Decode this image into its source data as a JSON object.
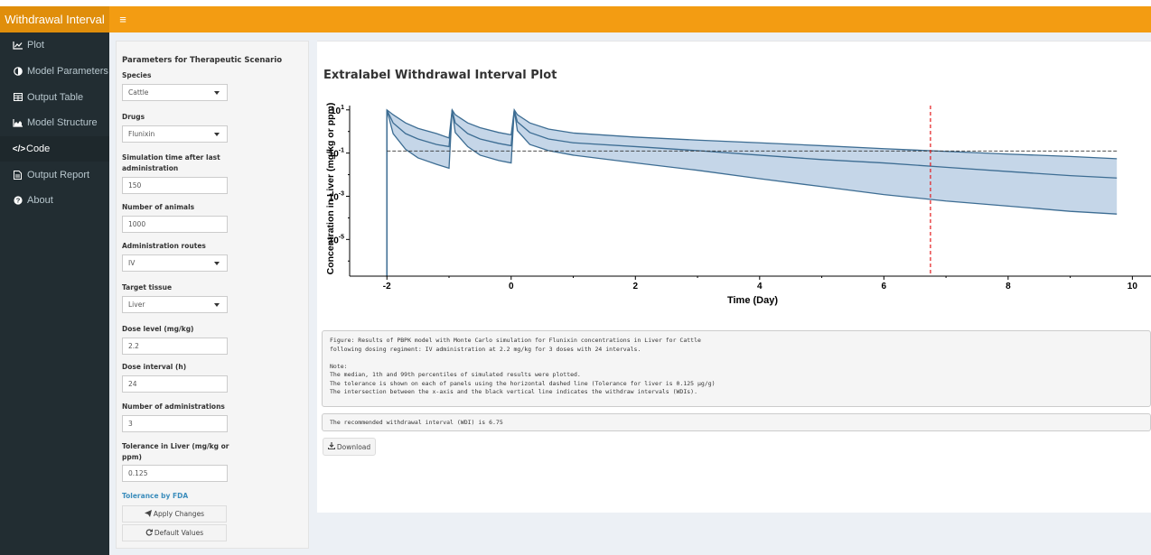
{
  "app": {
    "title": "Withdrawal Interval",
    "toggle_icon": "hamburger-icon"
  },
  "sidebar": {
    "items": [
      {
        "label": "Plot",
        "icon": "line-chart-icon",
        "active": true
      },
      {
        "label": "Model Parameters",
        "icon": "half-circle-icon",
        "active": false
      },
      {
        "label": "Output Table",
        "icon": "table-icon",
        "active": false
      },
      {
        "label": "Model Structure",
        "icon": "area-chart-icon",
        "active": false
      },
      {
        "label": "Code",
        "icon": "code-icon",
        "active": true
      },
      {
        "label": "Output Report",
        "icon": "file-icon",
        "active": false
      },
      {
        "label": "About",
        "icon": "question-icon",
        "active": false
      }
    ]
  },
  "params": {
    "title": "Parameters for Therapeutic Scenario",
    "species": {
      "label": "Species",
      "value": "Cattle"
    },
    "drugs": {
      "label": "Drugs",
      "value": "Flunixin"
    },
    "sim_time": {
      "label": "Simulation time after last administration",
      "value": "150"
    },
    "animals": {
      "label": "Number of animals",
      "value": "1000"
    },
    "routes": {
      "label": "Administration routes",
      "value": "IV"
    },
    "tissue": {
      "label": "Target tissue",
      "value": "Liver"
    },
    "dose_level": {
      "label": "Dose level (mg/kg)",
      "value": "2.2"
    },
    "dose_interval": {
      "label": "Dose interval (h)",
      "value": "24"
    },
    "num_admin": {
      "label": "Number of administrations",
      "value": "3"
    },
    "tolerance": {
      "label": "Tolerance in Liver (mg/kg or ppm)",
      "value": "0.125"
    },
    "tolerance_link": "Tolerance by FDA",
    "apply_label": "Apply Changes",
    "default_label": "Default Values"
  },
  "main": {
    "title": "Extralabel Withdrawal Interval Plot",
    "caption": "Figure: Results of PBPK model with Monte Carlo simulation for Flunixin concentrations in Liver for Cattle\nfollowing dosing regiment: IV administration at 2.2 mg/kg for 3 doses with 24 intervals.\n\nNote:\nThe median, 1th and 99th percentiles of simulated results were plotted.\nThe tolerance is shown on each of panels using the horizontal dashed line (Tolerance for liver is 0.125 µg/g)\nThe intersection between the x-axis and the black vertical line indicates the withdraw intervals (WDIs).",
    "wdi_text": "The recommended withdrawal interval (WDI) is 6.75",
    "download_label": "Download"
  },
  "chart_data": {
    "type": "area",
    "xlabel": "Time (Day)",
    "ylabel": "Concentration in Liver (mg/kg or ppm)",
    "x_ticks": [
      "-2",
      "0",
      "2",
      "4",
      "6",
      "8",
      "10"
    ],
    "y_ticks": [
      "10^1",
      "10^-1",
      "10^-3",
      "10^-5"
    ],
    "xlim": [
      -2.6,
      10.3
    ],
    "ylim_log10": [
      -6.7,
      1.2
    ],
    "x": [
      -2,
      -1.9,
      -1.7,
      -1.5,
      -1.2,
      -1.0,
      -0.95,
      -0.9,
      -0.7,
      -0.5,
      -0.2,
      0.0,
      0.05,
      0.1,
      0.3,
      0.6,
      1.0,
      2.0,
      3.0,
      4.0,
      5.0,
      6.0,
      7.0,
      8.0,
      9.0,
      9.75
    ],
    "series": [
      {
        "name": "99th percentile",
        "values": [
          10,
          6.0,
          2.5,
          1.4,
          0.8,
          0.5,
          10,
          6.0,
          2.5,
          1.5,
          0.9,
          0.7,
          10,
          6.0,
          2.5,
          1.3,
          0.85,
          0.55,
          0.4,
          0.3,
          0.22,
          0.16,
          0.12,
          0.09,
          0.07,
          0.055
        ]
      },
      {
        "name": "median",
        "values": [
          10,
          2.5,
          0.8,
          0.45,
          0.25,
          0.2,
          10,
          2.5,
          0.8,
          0.45,
          0.28,
          0.22,
          10,
          2.8,
          0.9,
          0.45,
          0.3,
          0.2,
          0.13,
          0.08,
          0.05,
          0.035,
          0.022,
          0.014,
          0.009,
          0.007
        ]
      },
      {
        "name": "1st percentile",
        "values": [
          10,
          0.8,
          0.15,
          0.06,
          0.03,
          0.02,
          10,
          0.9,
          0.2,
          0.08,
          0.045,
          0.035,
          10,
          1.1,
          0.25,
          0.13,
          0.08,
          0.035,
          0.016,
          0.0065,
          0.0028,
          0.0012,
          0.0006,
          0.00035,
          0.0002,
          0.00015
        ]
      }
    ],
    "tolerance": 0.125,
    "wdi": 6.75,
    "grid": false,
    "legend": "none",
    "colors": {
      "band": "#c5d6e8",
      "line": "#3d6d93",
      "wdi_line": "#e41a1c",
      "tolerance_line": "#333333"
    }
  }
}
